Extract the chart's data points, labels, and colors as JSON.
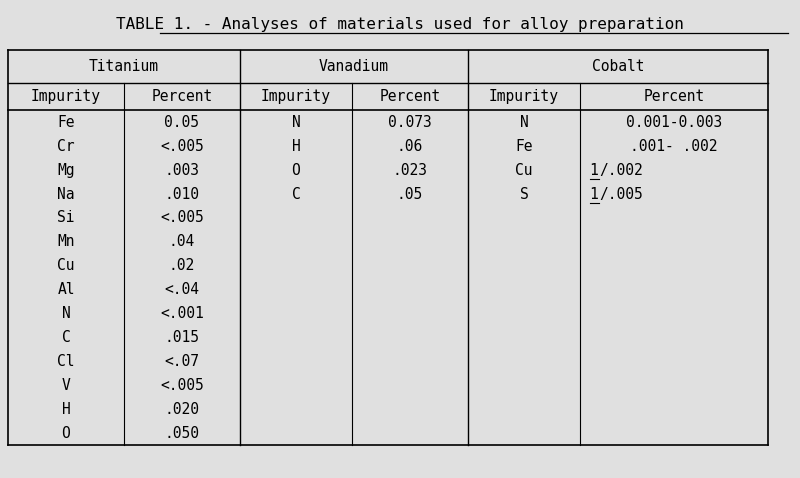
{
  "title": "TABLE 1. - Analyses of materials used for alloy preparation",
  "background_color": "#e0e0e0",
  "group_headers": [
    "Titanium",
    "Vanadium",
    "Cobalt"
  ],
  "col_headers": [
    "Impurity",
    "Percent",
    "Impurity",
    "Percent",
    "Impurity",
    "Percent"
  ],
  "titanium_data": [
    [
      "Fe",
      "0.05"
    ],
    [
      "Cr",
      "<.005"
    ],
    [
      "Mg",
      ".003"
    ],
    [
      "Na",
      ".010"
    ],
    [
      "Si",
      "<.005"
    ],
    [
      "Mn",
      ".04"
    ],
    [
      "Cu",
      ".02"
    ],
    [
      "Al",
      "<.04"
    ],
    [
      "N",
      "<.001"
    ],
    [
      "C",
      ".015"
    ],
    [
      "Cl",
      "<.07"
    ],
    [
      "V",
      "<.005"
    ],
    [
      "H",
      ".020"
    ],
    [
      "O",
      ".050"
    ]
  ],
  "vanadium_data": [
    [
      "N",
      "0.073"
    ],
    [
      "H",
      ".06"
    ],
    [
      "O",
      ".023"
    ],
    [
      "C",
      ".05"
    ]
  ],
  "cobalt_data": [
    [
      "N",
      "0.001-0.003"
    ],
    [
      "Fe",
      ".001- .002"
    ],
    [
      "Cu",
      "/.002"
    ],
    [
      "S",
      "/.005"
    ]
  ],
  "cobalt_underline_rows": [
    2,
    3
  ],
  "font_family": "monospace",
  "font_size": 10.5,
  "title_font_size": 11.5
}
